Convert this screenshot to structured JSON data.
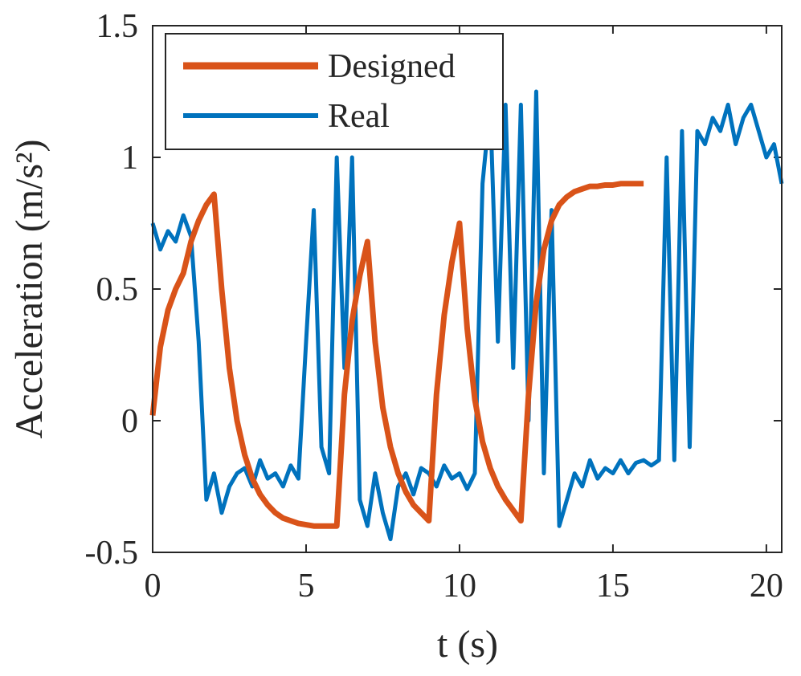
{
  "chart_data": {
    "type": "line",
    "xlabel": "t (s)",
    "ylabel": "Acceleration (m/s²)",
    "xlim": [
      0,
      20.5
    ],
    "ylim": [
      -0.5,
      1.5
    ],
    "xticks": [
      0,
      5,
      10,
      15,
      20
    ],
    "yticks": [
      -0.5,
      0,
      0.5,
      1,
      1.5
    ],
    "legend": "upper left",
    "x": [
      0,
      0.25,
      0.5,
      0.75,
      1,
      1.25,
      1.5,
      1.75,
      2,
      2.25,
      2.5,
      2.75,
      3,
      3.25,
      3.5,
      3.75,
      4,
      4.25,
      4.5,
      4.75,
      5,
      5.25,
      5.5,
      5.75,
      6,
      6.25,
      6.5,
      6.75,
      7,
      7.25,
      7.5,
      7.75,
      8,
      8.25,
      8.5,
      8.75,
      9,
      9.25,
      9.5,
      9.75,
      10,
      10.25,
      10.5,
      10.75,
      11,
      11.25,
      11.5,
      11.75,
      12,
      12.25,
      12.5,
      12.75,
      13,
      13.25,
      13.5,
      13.75,
      14,
      14.25,
      14.5,
      14.75,
      15,
      15.25,
      15.5,
      15.75,
      16,
      16.25,
      16.5,
      16.75,
      17,
      17.25,
      17.5,
      17.75,
      18,
      18.25,
      18.5,
      18.75,
      19,
      19.25,
      19.5,
      19.75,
      20,
      20.25,
      20.5
    ],
    "series": [
      {
        "name": "Designed",
        "color": "#d95319",
        "values": [
          0.02,
          0.28,
          0.42,
          0.5,
          0.56,
          0.68,
          0.76,
          0.82,
          0.86,
          0.5,
          0.2,
          0,
          -0.13,
          -0.22,
          -0.28,
          -0.32,
          -0.35,
          -0.37,
          -0.38,
          -0.39,
          -0.395,
          -0.4,
          -0.4,
          -0.4,
          -0.4,
          0.1,
          0.38,
          0.55,
          0.68,
          0.3,
          0.05,
          -0.1,
          -0.2,
          -0.27,
          -0.32,
          -0.35,
          -0.38,
          0.1,
          0.4,
          0.6,
          0.75,
          0.35,
          0.08,
          -0.08,
          -0.18,
          -0.25,
          -0.3,
          -0.34,
          -0.38,
          0.1,
          0.45,
          0.65,
          0.76,
          0.82,
          0.85,
          0.87,
          0.88,
          0.89,
          0.89,
          0.895,
          0.895,
          0.9,
          0.9,
          0.9,
          0.9,
          null,
          null,
          null,
          null,
          null,
          null,
          null,
          null,
          null,
          null,
          null,
          null,
          null,
          null,
          null,
          null,
          null,
          null
        ]
      },
      {
        "name": "Real",
        "color": "#0072bd",
        "values": [
          0.75,
          0.65,
          0.72,
          0.68,
          0.78,
          0.7,
          0.3,
          -0.3,
          -0.2,
          -0.35,
          -0.25,
          -0.2,
          -0.18,
          -0.25,
          -0.15,
          -0.22,
          -0.2,
          -0.25,
          -0.17,
          -0.22,
          0.3,
          0.8,
          -0.1,
          -0.2,
          1.0,
          0.2,
          1.0,
          -0.3,
          -0.4,
          -0.2,
          -0.35,
          -0.45,
          -0.25,
          -0.2,
          -0.28,
          -0.18,
          -0.2,
          -0.25,
          -0.17,
          -0.22,
          -0.2,
          -0.26,
          -0.2,
          0.9,
          1.2,
          0.3,
          1.2,
          0.2,
          1.2,
          0.0,
          1.25,
          -0.2,
          0.8,
          -0.4,
          -0.3,
          -0.2,
          -0.25,
          -0.15,
          -0.22,
          -0.18,
          -0.2,
          -0.15,
          -0.2,
          -0.16,
          -0.15,
          -0.17,
          -0.15,
          1.0,
          -0.15,
          1.1,
          -0.1,
          1.1,
          1.05,
          1.15,
          1.1,
          1.2,
          1.05,
          1.15,
          1.2,
          1.1,
          1.0,
          1.05,
          0.9
        ]
      }
    ]
  }
}
